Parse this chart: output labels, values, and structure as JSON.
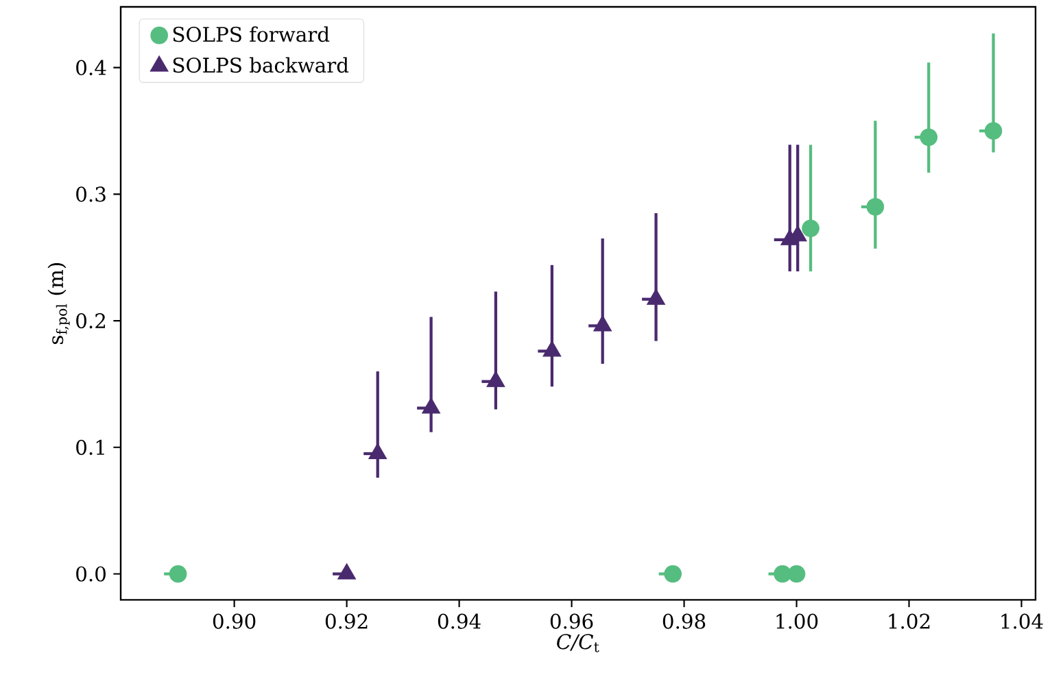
{
  "chart_data": {
    "type": "scatter",
    "xlabel": "*C/C*$_{t}$",
    "ylabel": "s$_{f,pol}$ (m)",
    "xlim": [
      0.8798,
      1.0425
    ],
    "ylim": [
      -0.0205,
      0.448
    ],
    "xticks": [
      {
        "value": 0.9,
        "label": "0.90"
      },
      {
        "value": 0.92,
        "label": "0.92"
      },
      {
        "value": 0.94,
        "label": "0.94"
      },
      {
        "value": 0.96,
        "label": "0.96"
      },
      {
        "value": 0.98,
        "label": "0.98"
      },
      {
        "value": 1.0,
        "label": "1.00"
      },
      {
        "value": 1.02,
        "label": "1.02"
      },
      {
        "value": 1.04,
        "label": "1.04"
      }
    ],
    "yticks": [
      {
        "value": 0,
        "label": "0.0"
      },
      0.1,
      0.2,
      0.3,
      0.4
    ],
    "legend": "top left",
    "grid": false,
    "series": [
      {
        "name": "SOLPS forward",
        "color": "#55bd7f",
        "marker": "circle",
        "x": [
          0.89,
          0.978,
          0.9975,
          1.0,
          1.0025,
          1.014,
          1.0235,
          1.035
        ],
        "values": [
          0,
          0,
          0,
          0,
          0.273,
          0.29,
          0.345,
          0.35
        ],
        "errors": [
          null,
          null,
          null,
          null,
          [
            0.239,
            0.339
          ],
          [
            0.257,
            0.358
          ],
          [
            0.317,
            0.404
          ],
          [
            0.333,
            0.427
          ]
        ],
        "xerrors": [
          [
            0.8875,
            0.89
          ],
          [
            0.9755,
            0.978
          ],
          [
            0.995,
            0.9975
          ],
          null,
          null,
          [
            1.0115,
            1.014
          ],
          [
            1.021,
            1.0235
          ],
          [
            1.0325,
            1.035
          ]
        ]
      },
      {
        "name": "SOLPS backward",
        "color": "#4a2a6e",
        "marker": "triangle",
        "x": [
          0.92,
          0.9255,
          0.935,
          0.9465,
          0.9565,
          0.9655,
          0.975,
          0.9988,
          1.0002
        ],
        "values": [
          0,
          0.095,
          0.131,
          0.152,
          0.176,
          0.196,
          0.217,
          0.264,
          0.267
        ],
        "errors": [
          null,
          [
            0.076,
            0.16
          ],
          [
            0.112,
            0.203
          ],
          [
            0.13,
            0.223
          ],
          [
            0.148,
            0.244
          ],
          [
            0.166,
            0.265
          ],
          [
            0.184,
            0.285
          ],
          [
            0.239,
            0.339
          ],
          [
            0.239,
            0.339
          ]
        ],
        "xerrors": [
          [
            0.9175,
            0.92
          ],
          [
            0.923,
            0.9255
          ],
          [
            0.9325,
            0.935
          ],
          [
            0.944,
            0.9465
          ],
          [
            0.954,
            0.9565
          ],
          [
            0.963,
            0.9655
          ],
          [
            0.9725,
            0.975
          ],
          [
            0.996,
            0.9988
          ],
          null
        ]
      }
    ]
  }
}
